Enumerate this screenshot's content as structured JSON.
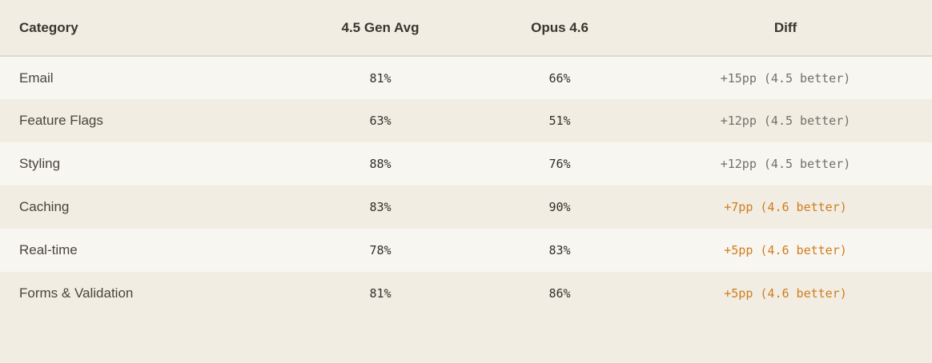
{
  "table": {
    "columns": [
      {
        "id": "category",
        "label": "Category"
      },
      {
        "id": "gen45",
        "label": "4.5 Gen Avg"
      },
      {
        "id": "opus46",
        "label": "Opus 4.6"
      },
      {
        "id": "diff",
        "label": "Diff"
      }
    ],
    "rows": [
      {
        "category": "Email",
        "gen45": "81%",
        "opus46": "66%",
        "diff": "+15pp (4.5 better)",
        "winner": "4.5"
      },
      {
        "category": "Feature Flags",
        "gen45": "63%",
        "opus46": "51%",
        "diff": "+12pp (4.5 better)",
        "winner": "4.5"
      },
      {
        "category": "Styling",
        "gen45": "88%",
        "opus46": "76%",
        "diff": "+12pp (4.5 better)",
        "winner": "4.5"
      },
      {
        "category": "Caching",
        "gen45": "83%",
        "opus46": "90%",
        "diff": "+7pp (4.6 better)",
        "winner": "4.6"
      },
      {
        "category": "Real-time",
        "gen45": "78%",
        "opus46": "83%",
        "diff": "+5pp (4.6 better)",
        "winner": "4.6"
      },
      {
        "category": "Forms & Validation",
        "gen45": "81%",
        "opus46": "86%",
        "diff": "+5pp (4.6 better)",
        "winner": "4.6"
      }
    ],
    "colors": {
      "page_background": "#F1EDE2",
      "light_row_background": "#F8F6F0",
      "header_divider": "#DBDAD2",
      "diff_gray": "#73706A",
      "diff_orange": "#D07C1F"
    }
  },
  "chart_data": {
    "type": "table",
    "title": "",
    "columns": [
      "Category",
      "4.5 Gen Avg",
      "Opus 4.6",
      "Diff"
    ],
    "categories": [
      "Email",
      "Feature Flags",
      "Styling",
      "Caching",
      "Real-time",
      "Forms & Validation"
    ],
    "series": [
      {
        "name": "4.5 Gen Avg",
        "values": [
          81,
          63,
          88,
          83,
          78,
          81
        ]
      },
      {
        "name": "Opus 4.6",
        "values": [
          66,
          51,
          76,
          90,
          83,
          86
        ]
      }
    ],
    "diff_labels": [
      "+15pp (4.5 better)",
      "+12pp (4.5 better)",
      "+12pp (4.5 better)",
      "+7pp (4.6 better)",
      "+5pp (4.6 better)",
      "+5pp (4.6 better)"
    ],
    "rows": [
      [
        "Email",
        "81%",
        "66%",
        "+15pp (4.5 better)"
      ],
      [
        "Feature Flags",
        "63%",
        "51%",
        "+12pp (4.5 better)"
      ],
      [
        "Styling",
        "88%",
        "76%",
        "+12pp (4.5 better)"
      ],
      [
        "Caching",
        "83%",
        "90%",
        "+7pp (4.6 better)"
      ],
      [
        "Real-time",
        "78%",
        "83%",
        "+5pp (4.6 better)"
      ],
      [
        "Forms & Validation",
        "81%",
        "86%",
        "+5pp (4.6 better)"
      ]
    ]
  }
}
